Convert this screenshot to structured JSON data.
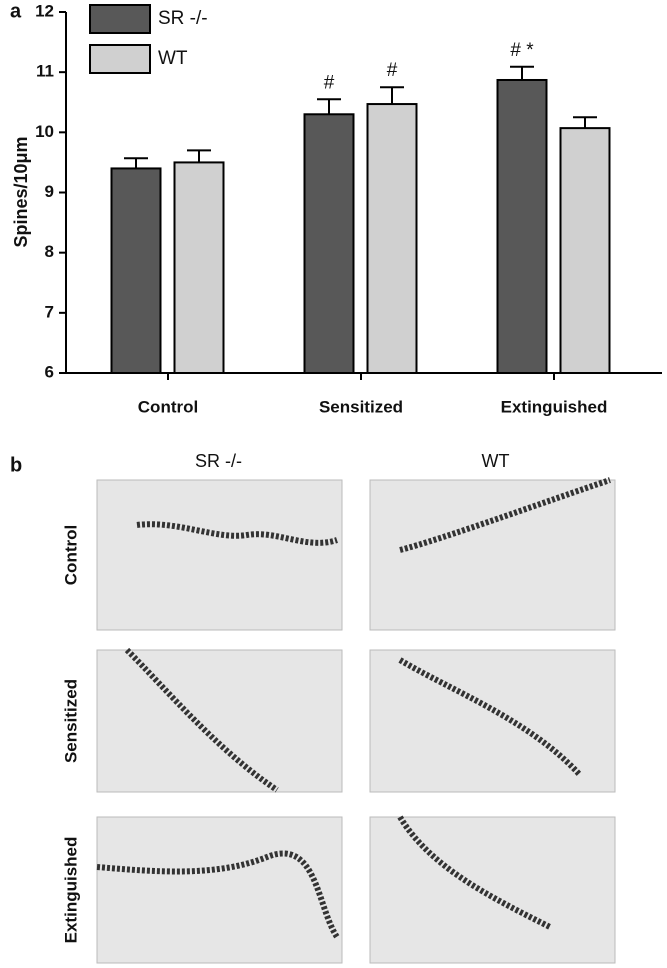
{
  "chart_data": {
    "type": "bar",
    "y_label": "Spines/10μm",
    "categories": [
      "Control",
      "Sensitized",
      "Extinguished"
    ],
    "series": [
      {
        "name": "SR -/-",
        "color": "#585858",
        "values": [
          9.4,
          10.3,
          10.87
        ],
        "errors": [
          0.17,
          0.25,
          0.22
        ]
      },
      {
        "name": "WT",
        "color": "#d0d0d0",
        "values": [
          9.5,
          10.47,
          10.07
        ],
        "errors": [
          0.2,
          0.28,
          0.18
        ]
      }
    ],
    "annotations": [
      {
        "text": "#",
        "category": "Sensitized",
        "series": "SR -/-"
      },
      {
        "text": "#",
        "category": "Sensitized",
        "series": "WT"
      },
      {
        "text": "# *",
        "category": "Extinguished",
        "series": "SR -/-"
      }
    ],
    "ylim": [
      6,
      12
    ],
    "yticks": [
      6,
      7,
      8,
      9,
      10,
      11,
      12
    ],
    "grid": false
  },
  "figure": {
    "panel_labels": [
      "a",
      "b"
    ],
    "micrograph_columns": [
      "SR -/-",
      "WT"
    ],
    "micrograph_rows": [
      "Control",
      "Sensitized",
      "Extinguished"
    ]
  }
}
